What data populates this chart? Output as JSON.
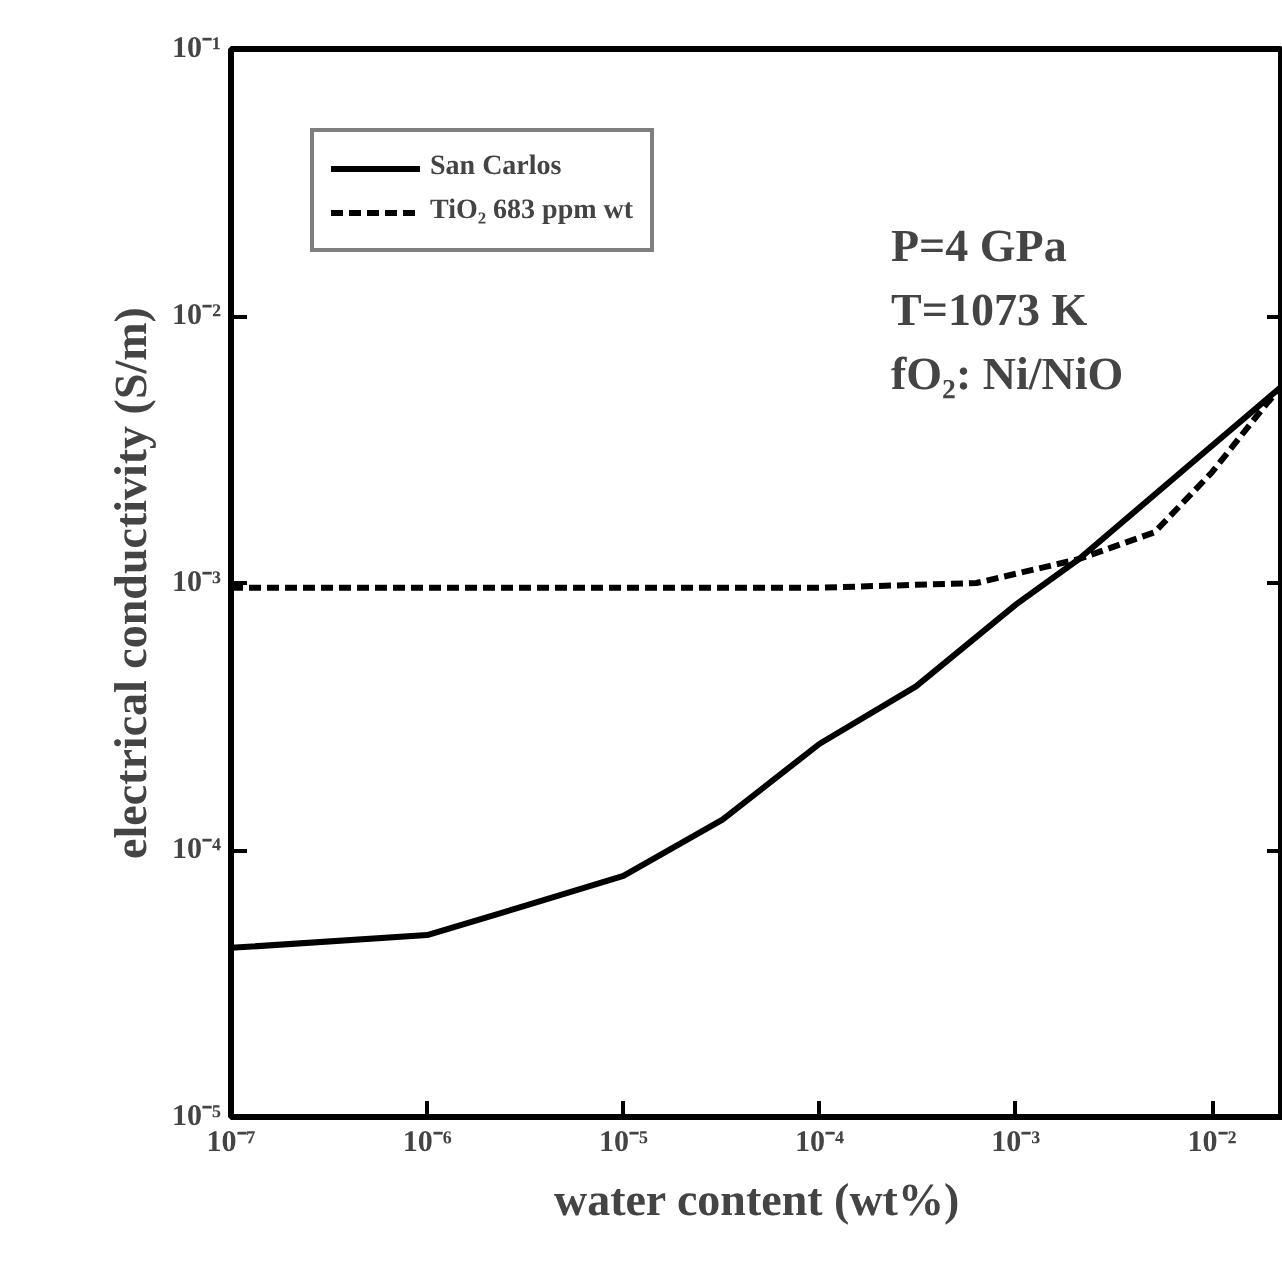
{
  "chart_data": {
    "type": "line",
    "xlabel": "water content (wt%)",
    "ylabel": "electrical conductivity (S/m)",
    "log": "xy",
    "grid": false,
    "legend": "top left",
    "xlim": [
      1e-07,
      0.023
    ],
    "ylim": [
      1e-05,
      0.1
    ],
    "xticks": [
      {
        "value": 1e-07,
        "label": "10⁻⁷"
      },
      {
        "value": 1e-06,
        "label": "10⁻⁶"
      },
      {
        "value": 1e-05,
        "label": "10⁻⁵"
      },
      {
        "value": 0.0001,
        "label": "10⁻⁴"
      },
      {
        "value": 0.001,
        "label": "10⁻³"
      },
      {
        "value": 0.01,
        "label": "10⁻²"
      }
    ],
    "yticks": [
      {
        "value": 1e-05,
        "label": "10⁻⁵"
      },
      {
        "value": 0.0001,
        "label": "10⁻⁴"
      },
      {
        "value": 0.001,
        "label": "10⁻³"
      },
      {
        "value": 0.01,
        "label": "10⁻²"
      },
      {
        "value": 0.1,
        "label": "10⁻¹"
      }
    ],
    "annotations": [
      "P=4 GPa",
      "T=1073 K",
      "fO₂: Ni/NiO"
    ],
    "series": [
      {
        "name": "San Carlos",
        "color": "#000000",
        "line_style": "solid",
        "x": [
          1e-07,
          1e-06,
          3.2e-06,
          1e-05,
          3.2e-05,
          0.0001,
          0.00031,
          0.001,
          0.0021,
          0.0085,
          0.023
        ],
        "values": [
          4.3e-05,
          4.8e-05,
          6.2e-05,
          8e-05,
          0.00013,
          0.00025,
          0.00041,
          0.00083,
          0.00123,
          0.00295,
          0.0055
        ]
      },
      {
        "name": "TiO₂ 683 ppm wt",
        "color": "#000000",
        "line_style": "dashed",
        "x": [
          1e-07,
          1e-05,
          0.0001,
          0.00063,
          0.0021,
          0.0051,
          0.01,
          0.019,
          0.023
        ],
        "values": [
          0.00096,
          0.00096,
          0.00096,
          0.001,
          0.00123,
          0.00155,
          0.0026,
          0.0047,
          0.0055
        ]
      }
    ]
  }
}
